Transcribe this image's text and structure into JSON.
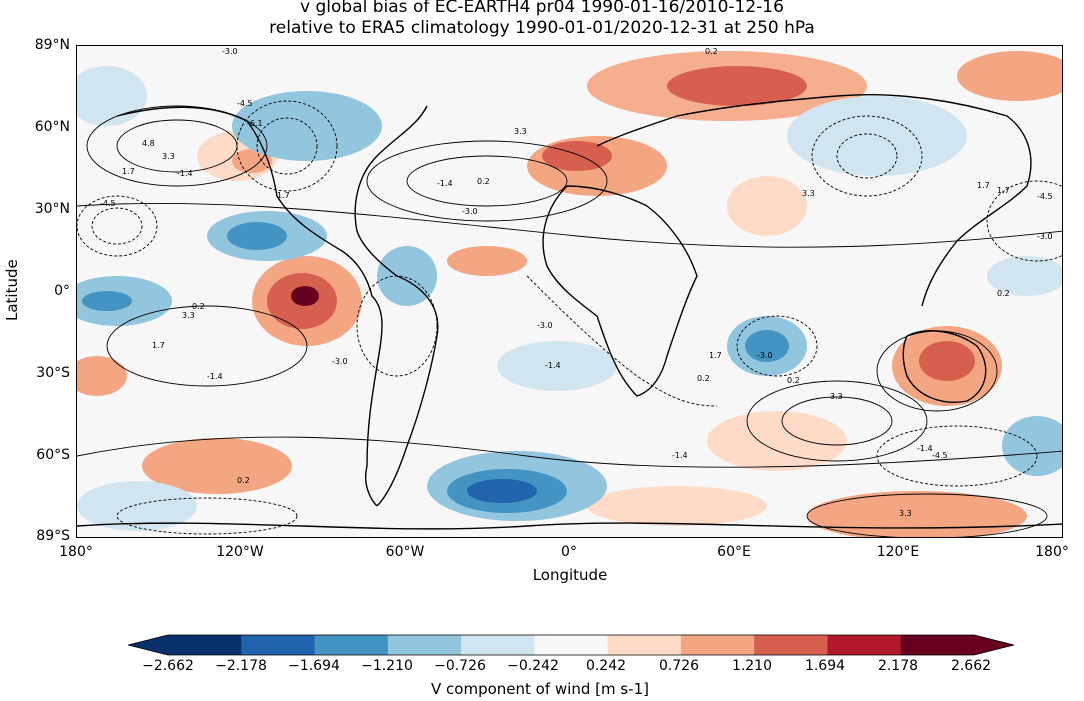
{
  "title": {
    "line1": "v global bias of EC-EARTH4 pr04 1990-01-16/2010-12-16",
    "line2": "relative to ERA5 climatology 1990-01-01/2020-12-31 at 250 hPa"
  },
  "axes": {
    "xlabel": "Longitude",
    "ylabel": "Latitude",
    "x_ticks": [
      "180°",
      "120°W",
      "60°W",
      "0°",
      "60°E",
      "120°E",
      "180°"
    ],
    "y_ticks": [
      "89°N",
      "60°N",
      "30°N",
      "0°",
      "30°S",
      "60°S",
      "89°S"
    ]
  },
  "colorbar": {
    "label": "V component of wind [m s-1]",
    "ticks": [
      "−2.662",
      "−2.178",
      "−1.694",
      "−1.210",
      "−0.726",
      "−0.242",
      "0.242",
      "0.726",
      "1.210",
      "1.694",
      "2.178",
      "2.662"
    ],
    "colors": [
      "#08306b",
      "#1f64ad",
      "#4393c3",
      "#92c5de",
      "#d1e5f0",
      "#f7f7f7",
      "#fddbc7",
      "#f4a582",
      "#d6604d",
      "#b2182b",
      "#67001f"
    ]
  },
  "contour_labels": [
    "-3.0",
    "0.2",
    "-4.5",
    "-6.1",
    "4.8",
    "3.3",
    "1.7",
    "-1.4",
    "1.7",
    "-3.0",
    "3.3",
    "0.2",
    "-1.4",
    "-4.5",
    "0.2",
    "3.3",
    "1.7",
    "-3.0",
    "-1.4",
    "0.2",
    "1.7",
    "-3.0",
    "-4.5",
    "3.3",
    "-1.4",
    "0.2",
    "-3.0",
    "-1.4",
    "3.3",
    "1.7",
    "-4.5",
    "-3.0",
    "0.2",
    "-1.4",
    "3.3",
    "0.2",
    "1.7"
  ]
}
